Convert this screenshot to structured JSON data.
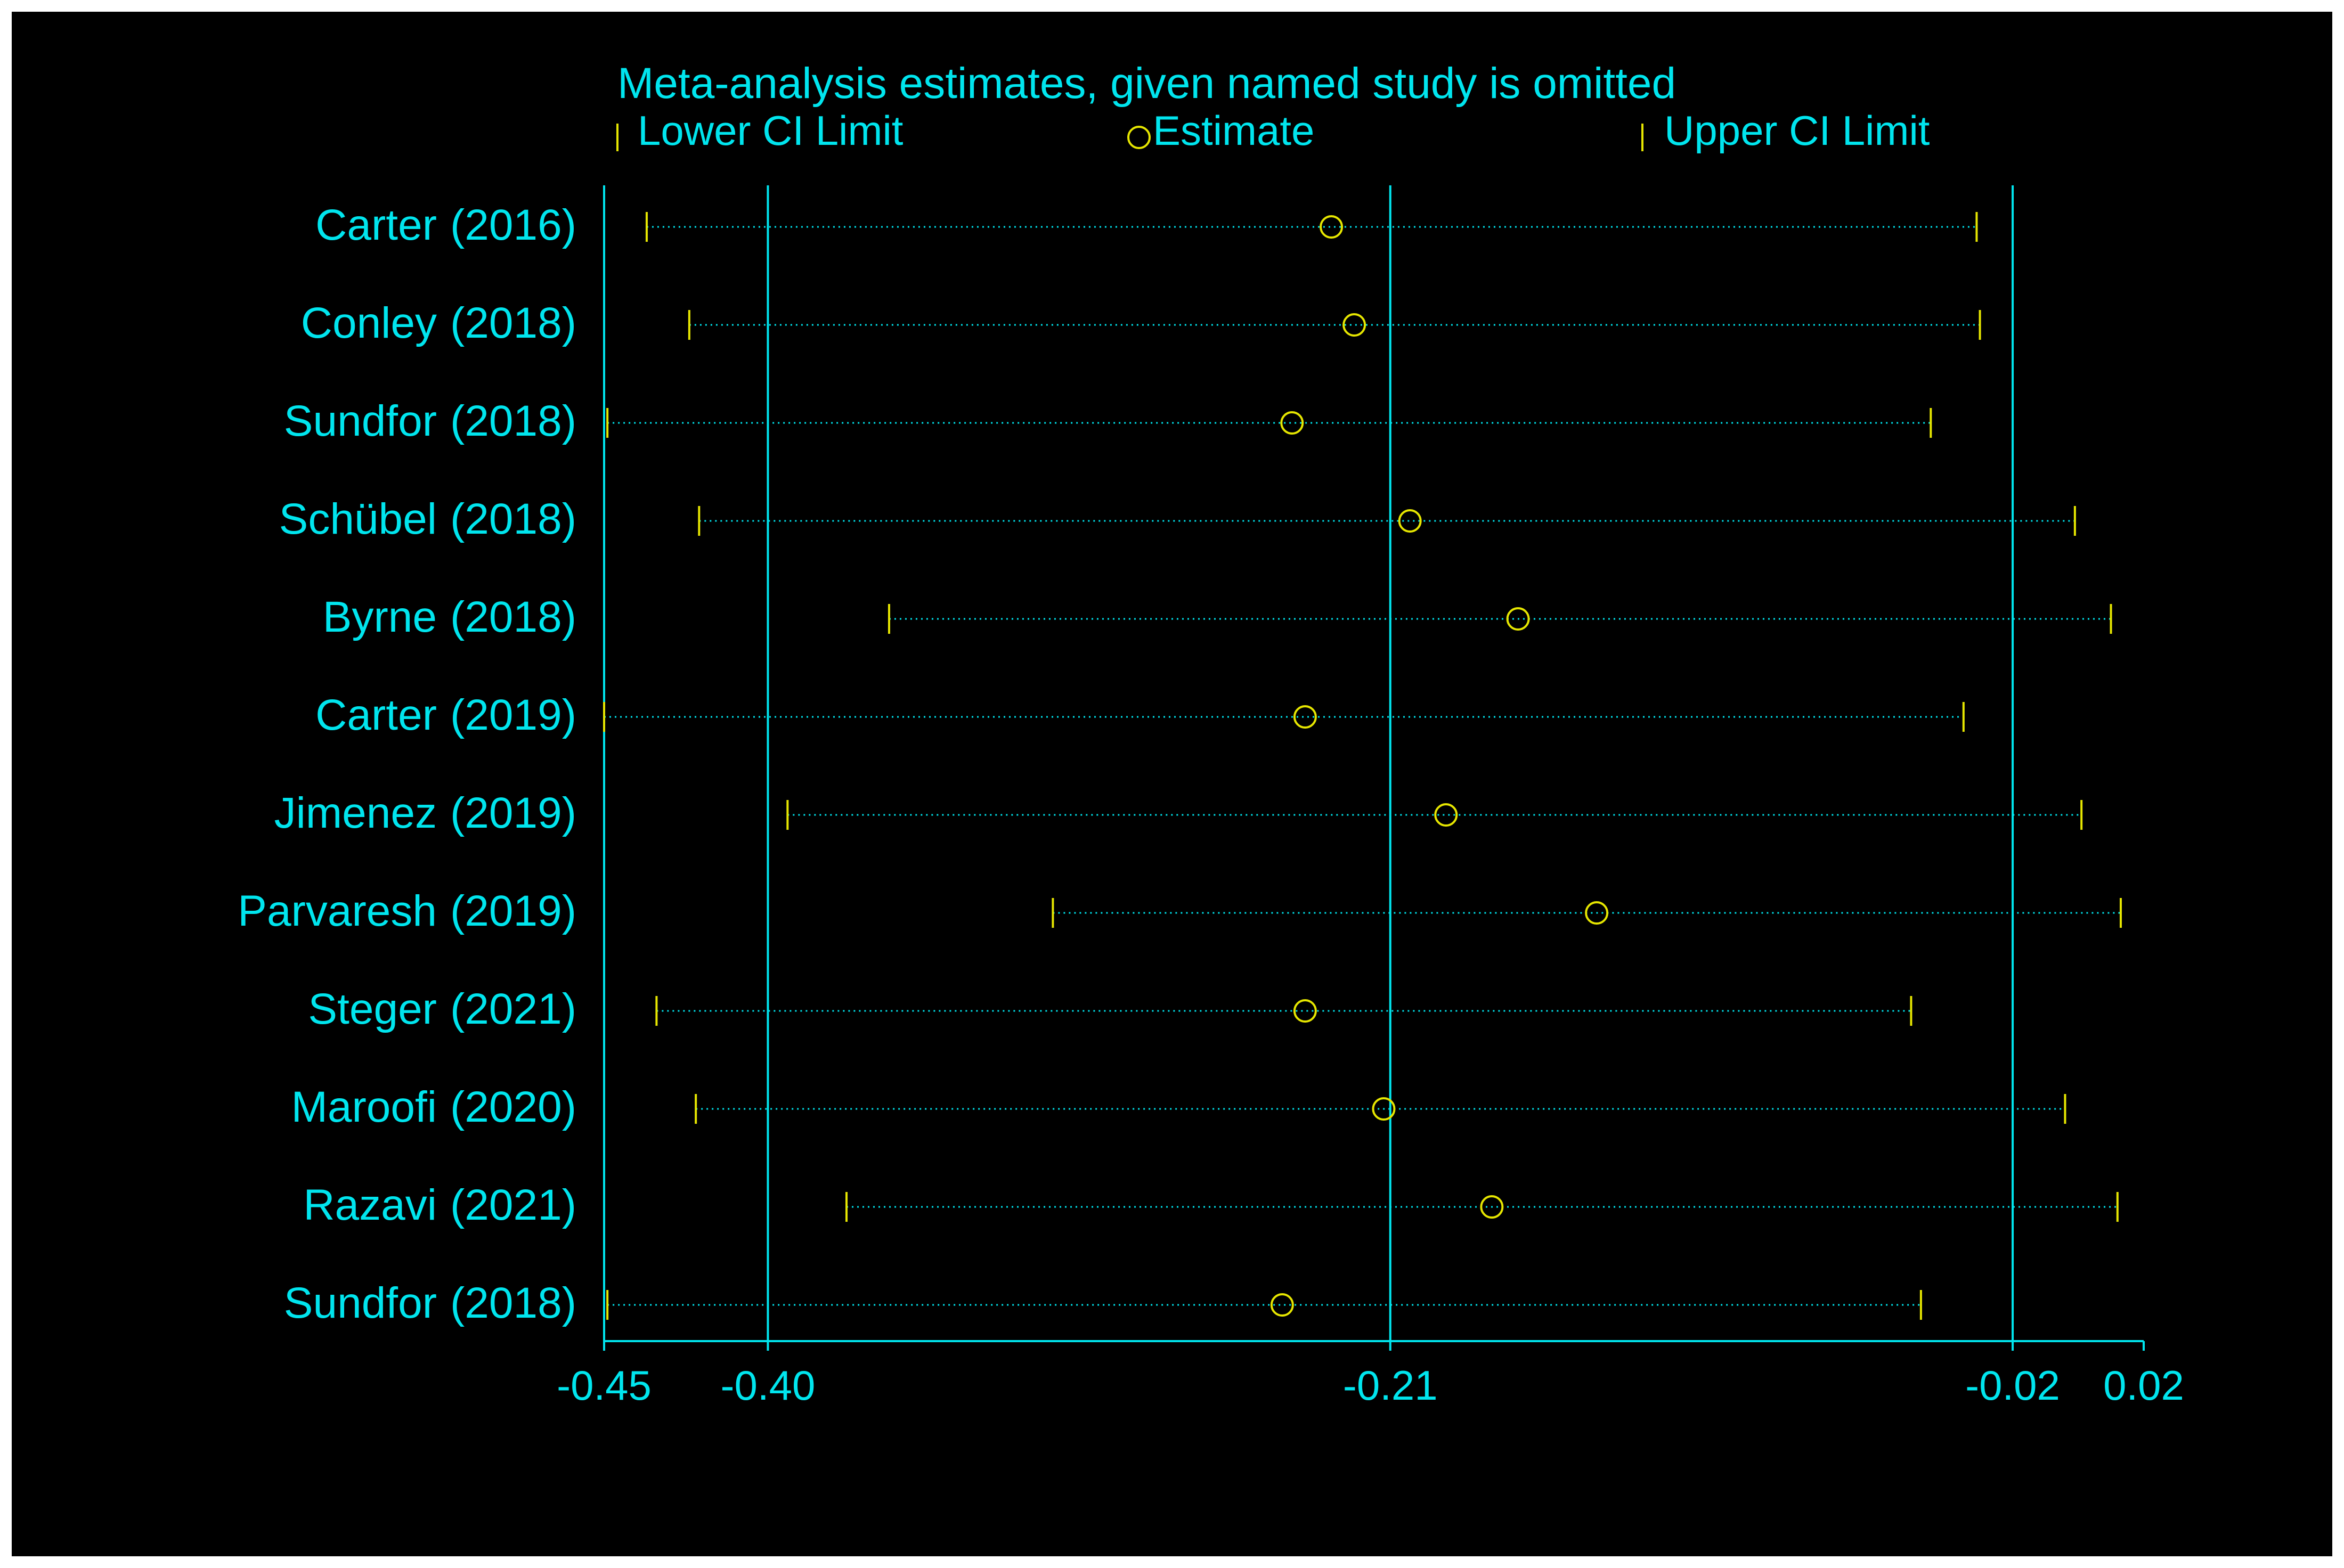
{
  "colors": {
    "background": "#000000",
    "axis": "#00e5ee",
    "text": "#00e5ee",
    "marker": "#e6e600",
    "dots": "#00e5ee"
  },
  "chart_data": {
    "type": "scatter",
    "title": "Meta-analysis estimates, given named study is omitted",
    "legend": {
      "placement": "top",
      "entries": [
        {
          "symbol": "tick",
          "label": "Lower CI Limit"
        },
        {
          "symbol": "circle",
          "label": "Estimate"
        },
        {
          "symbol": "tick",
          "label": "Upper CI Limit"
        }
      ]
    },
    "xlim": [
      -0.45,
      0.02
    ],
    "x_ticks": [
      -0.45,
      -0.4,
      -0.21,
      -0.02,
      0.02
    ],
    "x_tick_labels": [
      "-0.45",
      "-0.40",
      "-0.21",
      "-0.02",
      "0.02"
    ],
    "reference_lines": [
      -0.4,
      -0.21,
      -0.02
    ],
    "studies": [
      {
        "name": "Carter",
        "year": "(2016)",
        "lower": -0.437,
        "estimate": -0.228,
        "upper": -0.031
      },
      {
        "name": "Conley",
        "year": "(2018)",
        "lower": -0.424,
        "estimate": -0.221,
        "upper": -0.03
      },
      {
        "name": "Sundfor",
        "year": "(2018)",
        "lower": -0.449,
        "estimate": -0.24,
        "upper": -0.045
      },
      {
        "name": "Schübel",
        "year": "(2018)",
        "lower": -0.421,
        "estimate": -0.204,
        "upper": -0.001
      },
      {
        "name": "Byrne",
        "year": "(2018)",
        "lower": -0.363,
        "estimate": -0.171,
        "upper": 0.01
      },
      {
        "name": "Carter",
        "year": "(2019)",
        "lower": -0.45,
        "estimate": -0.236,
        "upper": -0.035
      },
      {
        "name": "Jimenez",
        "year": "(2019)",
        "lower": -0.394,
        "estimate": -0.193,
        "upper": 0.001
      },
      {
        "name": "Parvaresh",
        "year": "(2019)",
        "lower": -0.313,
        "estimate": -0.147,
        "upper": 0.013
      },
      {
        "name": "Steger",
        "year": "(2021)",
        "lower": -0.434,
        "estimate": -0.236,
        "upper": -0.051
      },
      {
        "name": "Maroofi",
        "year": "(2020)",
        "lower": -0.422,
        "estimate": -0.212,
        "upper": -0.004
      },
      {
        "name": "Razavi",
        "year": "(2021)",
        "lower": -0.376,
        "estimate": -0.179,
        "upper": 0.012
      },
      {
        "name": "Sundfor",
        "year": "(2018)",
        "lower": -0.449,
        "estimate": -0.243,
        "upper": -0.048
      }
    ]
  }
}
